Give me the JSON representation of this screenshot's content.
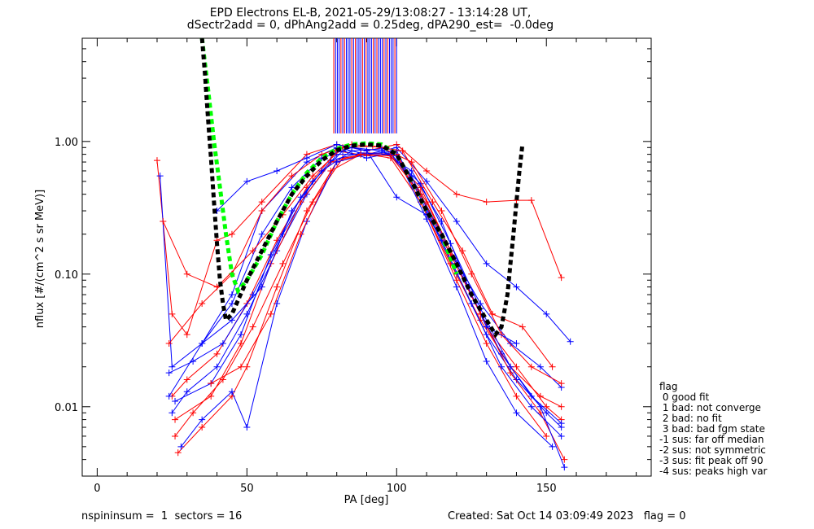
{
  "title_line1": "EPD Electrons EL-B, 2021-05-29/13:08:27 - 13:14:28 UT,",
  "title_line2": "dSectr2add = 0, dPhAng2add = 0.25deg, dPA290_est=  -0.0deg",
  "footer_left": "nspininsum =  1  sectors = 16",
  "footer_right": "Created: Sat Oct 14 03:09:49 2023   flag = 0",
  "legend": {
    "title": "flag",
    "items": [
      " 0 good fit",
      " 1 bad: not converge",
      " 2 bad: no fit",
      " 3 bad: bad fgm state",
      "-1 sus: far off median",
      "-2 sus: not symmetric",
      "-3 sus: fit peak off 90",
      "-4 sus: peaks high var"
    ]
  },
  "chart_data": {
    "type": "line",
    "xlabel": "PA [deg]",
    "ylabel": "nflux [#/(cm^2 s sr MeV)]",
    "xlim": [
      -5,
      185
    ],
    "ylim": [
      0.003,
      6.0
    ],
    "yscale": "log",
    "xticks": [
      0,
      50,
      100,
      150
    ],
    "xtick_labels": [
      "0",
      "50",
      "100",
      "150"
    ],
    "yticks": [
      0.01,
      0.1,
      1.0
    ],
    "ytick_labels": [
      "0.01",
      "0.10",
      "1.00"
    ],
    "colors": {
      "red": "#ff0000",
      "blue": "#0000ff",
      "green": "#00ff00",
      "black": "#000000"
    },
    "series": [
      {
        "color": "red",
        "marker": "plus",
        "x": [
          20,
          25,
          30,
          40,
          45,
          55,
          70,
          80,
          90,
          100,
          110,
          120,
          130,
          140,
          145,
          155
        ],
        "y": [
          0.72,
          0.05,
          0.035,
          0.18,
          0.2,
          0.35,
          0.8,
          0.95,
          0.85,
          0.95,
          0.6,
          0.4,
          0.35,
          0.36,
          0.36,
          0.094
        ]
      },
      {
        "color": "blue",
        "marker": "plus",
        "x": [
          21,
          25,
          35,
          45,
          55,
          70,
          80,
          90,
          100,
          110,
          120,
          130,
          140,
          150,
          158
        ],
        "y": [
          0.55,
          0.02,
          0.03,
          0.07,
          0.3,
          0.7,
          0.9,
          0.8,
          0.9,
          0.5,
          0.25,
          0.12,
          0.08,
          0.05,
          0.031
        ]
      },
      {
        "color": "red",
        "marker": "plus",
        "x": [
          25,
          30,
          40,
          50,
          60,
          70,
          80,
          90,
          100,
          110,
          120,
          130,
          140,
          150,
          155
        ],
        "y": [
          0.012,
          0.016,
          0.025,
          0.06,
          0.18,
          0.45,
          0.85,
          0.78,
          0.8,
          0.35,
          0.12,
          0.04,
          0.02,
          0.01,
          0.008
        ]
      },
      {
        "color": "blue",
        "marker": "plus",
        "x": [
          25,
          30,
          40,
          50,
          60,
          70,
          80,
          90,
          100,
          110,
          120,
          130,
          140,
          150,
          155
        ],
        "y": [
          0.009,
          0.013,
          0.02,
          0.05,
          0.15,
          0.4,
          0.8,
          0.8,
          0.85,
          0.3,
          0.1,
          0.035,
          0.016,
          0.009,
          0.007
        ]
      },
      {
        "color": "red",
        "marker": "plus",
        "x": [
          26,
          32,
          42,
          52,
          62,
          72,
          82,
          90,
          98,
          108,
          118,
          128,
          138,
          148,
          155
        ],
        "y": [
          0.006,
          0.009,
          0.016,
          0.04,
          0.12,
          0.35,
          0.75,
          0.8,
          0.75,
          0.35,
          0.12,
          0.045,
          0.02,
          0.012,
          0.01
        ]
      },
      {
        "color": "blue",
        "marker": "plus",
        "x": [
          24,
          32,
          42,
          52,
          62,
          72,
          82,
          90,
          98,
          108,
          118,
          128,
          138,
          148,
          155
        ],
        "y": [
          0.018,
          0.022,
          0.03,
          0.07,
          0.2,
          0.5,
          0.85,
          0.75,
          0.82,
          0.4,
          0.15,
          0.06,
          0.03,
          0.02,
          0.014
        ]
      },
      {
        "color": "red",
        "marker": "plus",
        "x": [
          27,
          35,
          45,
          50,
          60,
          70,
          80,
          90,
          100,
          110,
          120,
          130,
          140,
          150
        ],
        "y": [
          0.0045,
          0.007,
          0.012,
          0.02,
          0.08,
          0.3,
          0.7,
          0.82,
          0.8,
          0.28,
          0.09,
          0.03,
          0.012,
          0.006
        ]
      },
      {
        "color": "blue",
        "marker": "plus",
        "x": [
          28,
          35,
          45,
          50,
          60,
          70,
          80,
          90,
          100,
          110,
          120,
          130,
          140,
          152
        ],
        "y": [
          0.005,
          0.008,
          0.013,
          0.007,
          0.06,
          0.25,
          0.7,
          0.8,
          0.78,
          0.26,
          0.08,
          0.022,
          0.009,
          0.005
        ]
      },
      {
        "color": "red",
        "marker": "plus",
        "x": [
          24,
          35,
          45,
          55,
          65,
          75,
          85,
          95,
          105,
          115,
          125,
          135,
          145,
          155
        ],
        "y": [
          0.03,
          0.06,
          0.1,
          0.3,
          0.55,
          0.8,
          0.95,
          0.9,
          0.7,
          0.3,
          0.1,
          0.035,
          0.02,
          0.015
        ]
      },
      {
        "color": "blue",
        "marker": "plus",
        "x": [
          24,
          35,
          45,
          55,
          65,
          75,
          85,
          95,
          105,
          115,
          125,
          135,
          145,
          155
        ],
        "y": [
          0.012,
          0.03,
          0.06,
          0.2,
          0.45,
          0.75,
          0.9,
          0.85,
          0.6,
          0.25,
          0.07,
          0.025,
          0.012,
          0.0075
        ]
      },
      {
        "color": "red",
        "marker": "plus",
        "x": [
          26,
          38,
          48,
          58,
          68,
          78,
          88,
          98,
          108,
          118,
          128,
          138,
          148,
          156
        ],
        "y": [
          0.008,
          0.012,
          0.03,
          0.12,
          0.35,
          0.7,
          0.8,
          0.78,
          0.45,
          0.15,
          0.05,
          0.018,
          0.009,
          0.004
        ]
      },
      {
        "color": "blue",
        "marker": "plus",
        "x": [
          26,
          38,
          48,
          58,
          68,
          78,
          88,
          98,
          108,
          118,
          128,
          138,
          148,
          156
        ],
        "y": [
          0.011,
          0.015,
          0.035,
          0.14,
          0.38,
          0.72,
          0.82,
          0.8,
          0.48,
          0.17,
          0.055,
          0.02,
          0.01,
          0.0035
        ]
      },
      {
        "color": "red",
        "marker": "plus",
        "x": [
          22,
          30,
          40,
          52,
          62,
          72,
          82,
          92,
          102,
          112,
          122,
          132,
          142,
          152
        ],
        "y": [
          0.25,
          0.1,
          0.08,
          0.15,
          0.28,
          0.55,
          0.9,
          0.92,
          0.85,
          0.35,
          0.15,
          0.05,
          0.04,
          0.02
        ]
      },
      {
        "color": "blue",
        "marker": "plus",
        "x": [
          35,
          45,
          55,
          65,
          75,
          85,
          95,
          105,
          115,
          125,
          135,
          145,
          155
        ],
        "y": [
          0.03,
          0.045,
          0.08,
          0.3,
          0.6,
          0.85,
          0.88,
          0.55,
          0.18,
          0.06,
          0.02,
          0.01,
          0.006
        ]
      },
      {
        "color": "blue",
        "marker": "plus",
        "x": [
          40,
          50,
          60,
          70,
          80,
          90,
          100,
          110,
          120,
          130,
          140
        ],
        "y": [
          0.3,
          0.5,
          0.6,
          0.75,
          0.95,
          0.85,
          0.38,
          0.28,
          0.12,
          0.04,
          0.03
        ]
      },
      {
        "color": "red",
        "marker": "plus",
        "x": [
          38,
          48,
          58,
          68,
          78,
          88,
          98,
          108,
          118,
          128
        ],
        "y": [
          0.015,
          0.02,
          0.05,
          0.2,
          0.6,
          0.8,
          0.78,
          0.4,
          0.14,
          0.05
        ]
      }
    ],
    "verticals": {
      "x_min": 79,
      "x_max": 100,
      "from_y": 1.15,
      "to_y": 6.0
    },
    "fit_lines": [
      {
        "name": "",
        "color": "green",
        "style": "dashed",
        "x": [
          35,
          37,
          39,
          41,
          43,
          45,
          47,
          50,
          55,
          60,
          65,
          70,
          75,
          80,
          85,
          90,
          95,
          100,
          105,
          110,
          115,
          120
        ],
        "y": [
          6.0,
          2.5,
          1.0,
          0.45,
          0.2,
          0.1,
          0.075,
          0.09,
          0.14,
          0.25,
          0.4,
          0.58,
          0.75,
          0.88,
          0.95,
          0.97,
          0.95,
          0.8,
          0.5,
          0.3,
          0.2,
          0.1
        ]
      },
      {
        "name": "",
        "color": "black",
        "style": "dashed",
        "x": [
          35,
          36,
          37,
          38,
          39,
          40,
          41,
          42,
          43,
          45,
          50,
          55,
          60,
          65,
          70,
          75,
          80,
          85,
          90,
          95,
          100,
          105,
          110,
          115,
          120,
          125,
          130,
          133,
          135,
          137,
          138,
          139,
          140,
          141,
          142
        ],
        "y": [
          6.0,
          3.2,
          1.5,
          0.75,
          0.35,
          0.17,
          0.09,
          0.06,
          0.045,
          0.05,
          0.09,
          0.15,
          0.25,
          0.4,
          0.55,
          0.72,
          0.86,
          0.93,
          0.95,
          0.93,
          0.8,
          0.5,
          0.3,
          0.2,
          0.12,
          0.07,
          0.045,
          0.035,
          0.04,
          0.07,
          0.12,
          0.2,
          0.35,
          0.6,
          0.95
        ]
      }
    ]
  }
}
